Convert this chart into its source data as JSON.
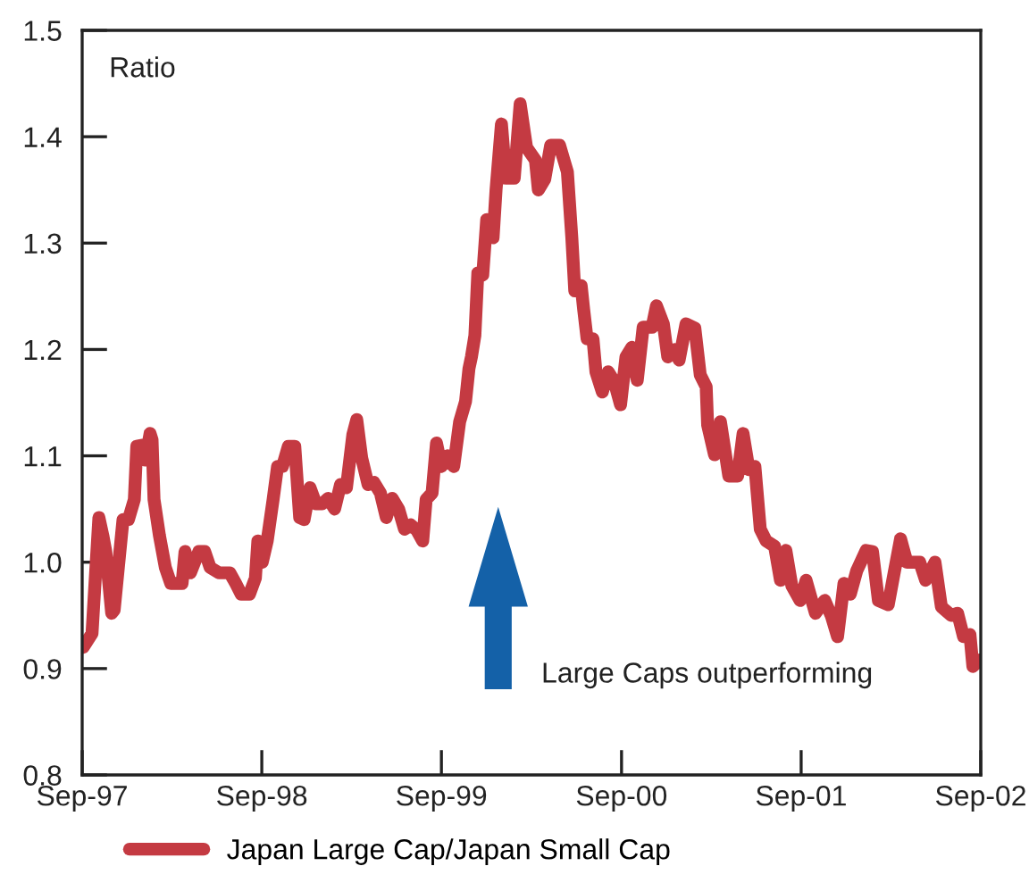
{
  "chart_data": {
    "type": "line",
    "ylabel": "Ratio",
    "annotations": [
      "Large Caps outperforming"
    ],
    "legend": "bottom",
    "line_style": "solid",
    "xlim": [
      "1997-09-01",
      "2002-09-01"
    ],
    "xticks": [
      {
        "value": "1997-09-01",
        "label": "Sep-97"
      },
      {
        "value": "1998-09-01",
        "label": "Sep-98"
      },
      {
        "value": "1999-09-01",
        "label": "Sep-99"
      },
      {
        "value": "2000-09-01",
        "label": "Sep-00"
      },
      {
        "value": "2001-09-01",
        "label": "Sep-01"
      },
      {
        "value": "2002-09-01",
        "label": "Sep-02"
      }
    ],
    "ylim": [
      0.8,
      1.5
    ],
    "yticks": [
      0.8,
      0.9,
      {
        "value": 1,
        "label": "1.0"
      },
      1.1,
      1.2,
      1.3,
      1.4,
      1.5
    ],
    "x": [
      "1997-09-03",
      "1997-09-21",
      "1997-10-05",
      "1997-10-13",
      "1997-10-19",
      "1997-10-31",
      "1997-11-05",
      "1997-11-23",
      "1997-12-04",
      "1997-12-16",
      "1997-12-21",
      "1998-01-02",
      "1998-01-07",
      "1998-01-17",
      "1998-01-21",
      "1998-01-25",
      "1998-02-05",
      "1998-02-17",
      "1998-02-28",
      "1998-03-12",
      "1998-03-23",
      "1998-03-29",
      "1998-04-09",
      "1998-04-26",
      "1998-05-08",
      "1998-05-19",
      "1998-06-06",
      "1998-06-28",
      "1998-07-10",
      "1998-07-21",
      "1998-08-07",
      "1998-08-19",
      "1998-08-24",
      "1998-09-02",
      "1998-09-12",
      "1998-09-24",
      "1998-10-03",
      "1998-10-13",
      "1998-10-25",
      "1998-11-07",
      "1998-11-17",
      "1998-11-26",
      "1998-12-08",
      "1998-12-20",
      "1999-01-02",
      "1999-01-14",
      "1999-01-27",
      "1999-02-08",
      "1999-02-20",
      "1999-03-05",
      "1999-03-13",
      "1999-03-23",
      "1999-04-05",
      "1999-04-17",
      "1999-04-30",
      "1999-05-12",
      "1999-05-24",
      "1999-06-06",
      "1999-06-18",
      "1999-07-01",
      "1999-07-13",
      "1999-07-25",
      "1999-08-01",
      "1999-08-13",
      "1999-08-22",
      "1999-09-01",
      "1999-09-13",
      "1999-09-26",
      "1999-10-08",
      "1999-10-20",
      "1999-10-27",
      "1999-11-01",
      "1999-11-08",
      "1999-11-14",
      "1999-11-24",
      "1999-12-02",
      "1999-12-15",
      "1999-12-21",
      "2000-01-01",
      "2000-01-10",
      "2000-01-27",
      "2000-02-08",
      "2000-02-21",
      "2000-03-10",
      "2000-03-16",
      "2000-03-29",
      "2000-04-10",
      "2000-04-28",
      "2000-05-14",
      "2000-05-23",
      "2000-05-29",
      "2000-06-11",
      "2000-06-16",
      "2000-06-23",
      "2000-07-05",
      "2000-07-11",
      "2000-07-24",
      "2000-08-05",
      "2000-08-17",
      "2000-08-30",
      "2000-09-10",
      "2000-09-22",
      "2000-10-03",
      "2000-10-15",
      "2000-11-02",
      "2000-11-11",
      "2000-11-25",
      "2000-12-04",
      "2000-12-18",
      "2000-12-27",
      "2001-01-10",
      "2001-01-28",
      "2001-02-08",
      "2001-02-20",
      "2001-02-23",
      "2001-03-09",
      "2001-03-21",
      "2001-04-07",
      "2001-04-25",
      "2001-05-06",
      "2001-05-18",
      "2001-05-30",
      "2001-06-10",
      "2001-06-22",
      "2001-07-09",
      "2001-07-21",
      "2001-08-01",
      "2001-08-13",
      "2001-08-30",
      "2001-09-11",
      "2001-09-30",
      "2001-10-19",
      "2001-11-01",
      "2001-11-14",
      "2001-11-27",
      "2001-12-10",
      "2001-12-23",
      "2002-01-11",
      "2002-01-24",
      "2002-02-05",
      "2002-02-25",
      "2002-03-09",
      "2002-03-22",
      "2002-04-04",
      "2002-04-17",
      "2002-04-30",
      "2002-05-12",
      "2002-05-31",
      "2002-06-13",
      "2002-07-03",
      "2002-07-16",
      "2002-07-28",
      "2002-08-10",
      "2002-08-16",
      "2002-08-29"
    ],
    "series": [
      {
        "name": "Japan Large Cap/Japan Small Cap",
        "color": "#c43a42",
        "values": [
          0.92,
          0.933,
          1.042,
          1.025,
          1.01,
          0.952,
          0.955,
          1.04,
          1.04,
          1.059,
          1.109,
          1.11,
          1.096,
          1.121,
          1.115,
          1.059,
          1.025,
          0.995,
          0.98,
          0.98,
          0.98,
          1.01,
          0.99,
          1.01,
          1.01,
          0.995,
          0.99,
          0.99,
          0.98,
          0.97,
          0.97,
          0.985,
          1.02,
          1.0,
          1.02,
          1.059,
          1.09,
          1.09,
          1.109,
          1.109,
          1.042,
          1.04,
          1.07,
          1.055,
          1.055,
          1.06,
          1.05,
          1.073,
          1.07,
          1.12,
          1.134,
          1.098,
          1.073,
          1.075,
          1.065,
          1.042,
          1.06,
          1.05,
          1.031,
          1.035,
          1.03,
          1.02,
          1.059,
          1.065,
          1.112,
          1.09,
          1.1,
          1.09,
          1.132,
          1.151,
          1.182,
          1.193,
          1.213,
          1.272,
          1.27,
          1.322,
          1.305,
          1.35,
          1.412,
          1.361,
          1.361,
          1.431,
          1.39,
          1.378,
          1.35,
          1.36,
          1.392,
          1.392,
          1.367,
          1.305,
          1.255,
          1.26,
          1.238,
          1.21,
          1.21,
          1.179,
          1.16,
          1.179,
          1.17,
          1.148,
          1.193,
          1.202,
          1.171,
          1.221,
          1.221,
          1.241,
          1.224,
          1.193,
          1.2,
          1.19,
          1.224,
          1.22,
          1.176,
          1.165,
          1.129,
          1.101,
          1.132,
          1.081,
          1.081,
          1.121,
          1.087,
          1.09,
          1.031,
          1.02,
          1.015,
          0.983,
          1.011,
          0.978,
          0.964,
          0.983,
          0.952,
          0.964,
          0.95,
          0.93,
          0.98,
          0.97,
          0.992,
          1.011,
          1.01,
          0.964,
          0.96,
          0.99,
          1.022,
          1.0,
          1.0,
          1.0,
          0.983,
          1.0,
          0.958,
          0.95,
          0.952,
          0.93,
          0.932,
          0.902,
          0.908
        ]
      }
    ]
  }
}
